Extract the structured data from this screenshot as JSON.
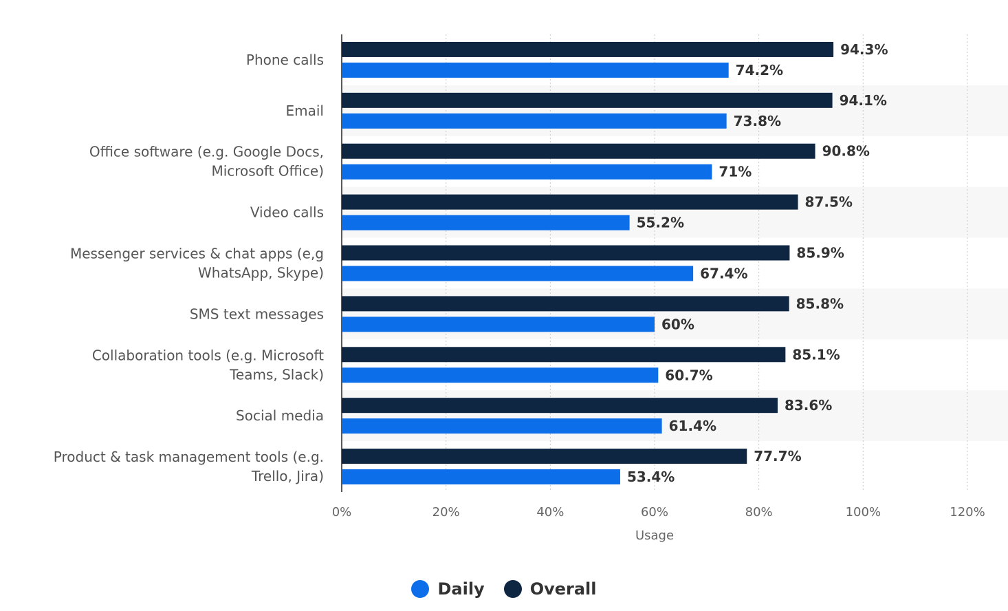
{
  "chart_data": {
    "type": "bar",
    "orientation": "horizontal",
    "categories": [
      "Phone calls",
      "Email",
      "Office software (e.g. Google Docs,\nMicrosoft Office)",
      "Video calls",
      "Messenger services & chat apps (e,g\nWhatsApp, Skype)",
      "SMS text messages",
      "Collaboration tools (e.g. Microsoft\nTeams, Slack)",
      "Social media",
      "Product & task management tools (e.g.\nTrello, Jira)"
    ],
    "series": [
      {
        "name": "Overall",
        "color": "#0f2642",
        "values": [
          94.3,
          94.1,
          90.8,
          87.5,
          85.9,
          85.8,
          85.1,
          83.6,
          77.7
        ],
        "value_labels": [
          "94.3%",
          "94.1%",
          "90.8%",
          "87.5%",
          "85.9%",
          "85.8%",
          "85.1%",
          "83.6%",
          "77.7%"
        ]
      },
      {
        "name": "Daily",
        "color": "#0c6ee8",
        "values": [
          74.2,
          73.8,
          71,
          55.2,
          67.4,
          60,
          60.7,
          61.4,
          53.4
        ],
        "value_labels": [
          "74.2%",
          "73.8%",
          "71%",
          "55.2%",
          "67.4%",
          "60%",
          "60.7%",
          "61.4%",
          "53.4%"
        ]
      }
    ],
    "xlabel": "Usage",
    "xlim": [
      0,
      120
    ],
    "x_ticks": [
      0,
      20,
      40,
      60,
      80,
      100,
      120
    ],
    "x_tick_labels": [
      "0%",
      "20%",
      "40%",
      "60%",
      "80%",
      "100%",
      "120%"
    ],
    "grid": true,
    "legend_position": "bottom-center"
  },
  "legend": {
    "items": [
      {
        "label": "Daily",
        "color": "#0c6ee8"
      },
      {
        "label": "Overall",
        "color": "#0f2642"
      }
    ]
  }
}
